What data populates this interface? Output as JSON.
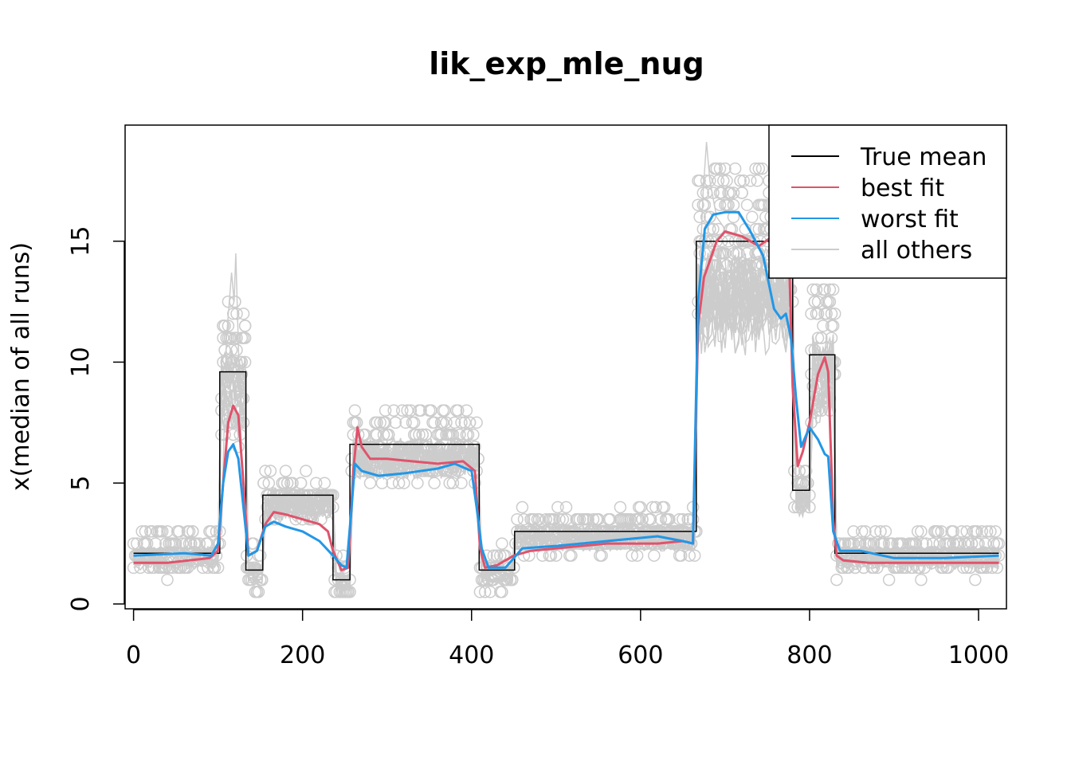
{
  "chart_data": {
    "type": "line",
    "title": "lik_exp_mle_nug",
    "xlabel": "",
    "ylabel": "x(median of all runs)",
    "xlim": [
      -10,
      1033
    ],
    "ylim": [
      -0.2,
      19.8
    ],
    "xticks": [
      0,
      200,
      400,
      600,
      800,
      1000
    ],
    "yticks": [
      0,
      5,
      10,
      15
    ],
    "grid": false,
    "legend_position": "top-right",
    "colors": {
      "true_mean": "#000000",
      "best_fit": "#DF536B",
      "worst_fit": "#2297E6",
      "all_others": "#CCCCCC"
    },
    "legend": [
      {
        "label": "True mean",
        "color": "#000000"
      },
      {
        "label": "best fit",
        "color": "#DF536B"
      },
      {
        "label": "worst fit",
        "color": "#2297E6"
      },
      {
        "label": "all others",
        "color": "#CCCCCC"
      }
    ],
    "true_mean": {
      "segments": [
        {
          "x": [
            0,
            102
          ],
          "y": 2.1
        },
        {
          "x": [
            102,
            133
          ],
          "y": 9.6
        },
        {
          "x": [
            133,
            153
          ],
          "y": 1.4
        },
        {
          "x": [
            153,
            236
          ],
          "y": 4.5
        },
        {
          "x": [
            236,
            256
          ],
          "y": 1.0
        },
        {
          "x": [
            256,
            409
          ],
          "y": 6.6
        },
        {
          "x": [
            409,
            451
          ],
          "y": 1.4
        },
        {
          "x": [
            451,
            666
          ],
          "y": 3.0
        },
        {
          "x": [
            666,
            780
          ],
          "y": 15.0
        },
        {
          "x": [
            780,
            800
          ],
          "y": 4.7
        },
        {
          "x": [
            800,
            830
          ],
          "y": 10.3
        },
        {
          "x": [
            830,
            1024
          ],
          "y": 2.1
        }
      ]
    },
    "series": [
      {
        "name": "best fit",
        "x": [
          0,
          40,
          90,
          100,
          106,
          112,
          118,
          124,
          130,
          136,
          146,
          156,
          166,
          180,
          200,
          220,
          230,
          236,
          246,
          254,
          260,
          265,
          270,
          280,
          300,
          330,
          360,
          390,
          404,
          410,
          416,
          430,
          450,
          470,
          500,
          560,
          620,
          650,
          662,
          668,
          675,
          690,
          700,
          720,
          740,
          760,
          770,
          776,
          780,
          786,
          792,
          800,
          810,
          818,
          822,
          828,
          832,
          840,
          870,
          940,
          980,
          1024
        ],
        "y": [
          1.7,
          1.7,
          1.9,
          2.2,
          5.0,
          7.5,
          8.2,
          7.8,
          5.0,
          2.0,
          2.2,
          3.3,
          3.8,
          3.7,
          3.5,
          3.3,
          3.0,
          2.2,
          1.4,
          1.5,
          5.5,
          7.3,
          6.5,
          6.0,
          6.0,
          5.9,
          5.8,
          5.9,
          5.5,
          2.3,
          1.5,
          1.6,
          2.0,
          2.2,
          2.3,
          2.5,
          2.5,
          2.6,
          2.5,
          11.5,
          13.5,
          15.0,
          15.4,
          15.2,
          14.8,
          15.3,
          16.0,
          14.0,
          9.0,
          5.7,
          6.3,
          7.5,
          9.5,
          10.2,
          9.6,
          3.5,
          2.0,
          1.8,
          1.7,
          1.7,
          1.7,
          1.7
        ]
      },
      {
        "name": "worst fit",
        "x": [
          0,
          60,
          92,
          100,
          106,
          112,
          118,
          124,
          130,
          136,
          146,
          156,
          166,
          180,
          200,
          220,
          236,
          246,
          252,
          258,
          262,
          270,
          290,
          320,
          360,
          380,
          400,
          406,
          412,
          420,
          440,
          460,
          500,
          560,
          620,
          650,
          662,
          668,
          676,
          686,
          700,
          716,
          730,
          745,
          758,
          766,
          772,
          778,
          784,
          790,
          800,
          810,
          818,
          822,
          828,
          836,
          860,
          900,
          960,
          1024
        ],
        "y": [
          2.0,
          2.1,
          2.0,
          2.5,
          5.0,
          6.3,
          6.6,
          6.0,
          4.0,
          2.0,
          2.2,
          3.2,
          3.4,
          3.2,
          3.0,
          2.6,
          2.0,
          1.6,
          1.5,
          4.0,
          5.8,
          5.5,
          5.3,
          5.4,
          5.6,
          5.8,
          5.5,
          4.0,
          2.3,
          1.5,
          1.5,
          2.3,
          2.4,
          2.6,
          2.8,
          2.6,
          2.5,
          12.5,
          15.5,
          16.1,
          16.2,
          16.2,
          15.4,
          14.4,
          12.2,
          11.8,
          12.0,
          11.0,
          8.5,
          6.5,
          7.3,
          6.8,
          6.2,
          6.1,
          3.0,
          2.2,
          2.2,
          1.9,
          1.9,
          2.0
        ]
      }
    ],
    "all_others_spread": {
      "description_values": "grey band and scatter of all other runs around the true mean",
      "peaks": [
        {
          "x": 121,
          "y": 14.5
        },
        {
          "x": 116,
          "y": 13.7
        },
        {
          "x": 678,
          "y": 19.1
        }
      ]
    }
  }
}
